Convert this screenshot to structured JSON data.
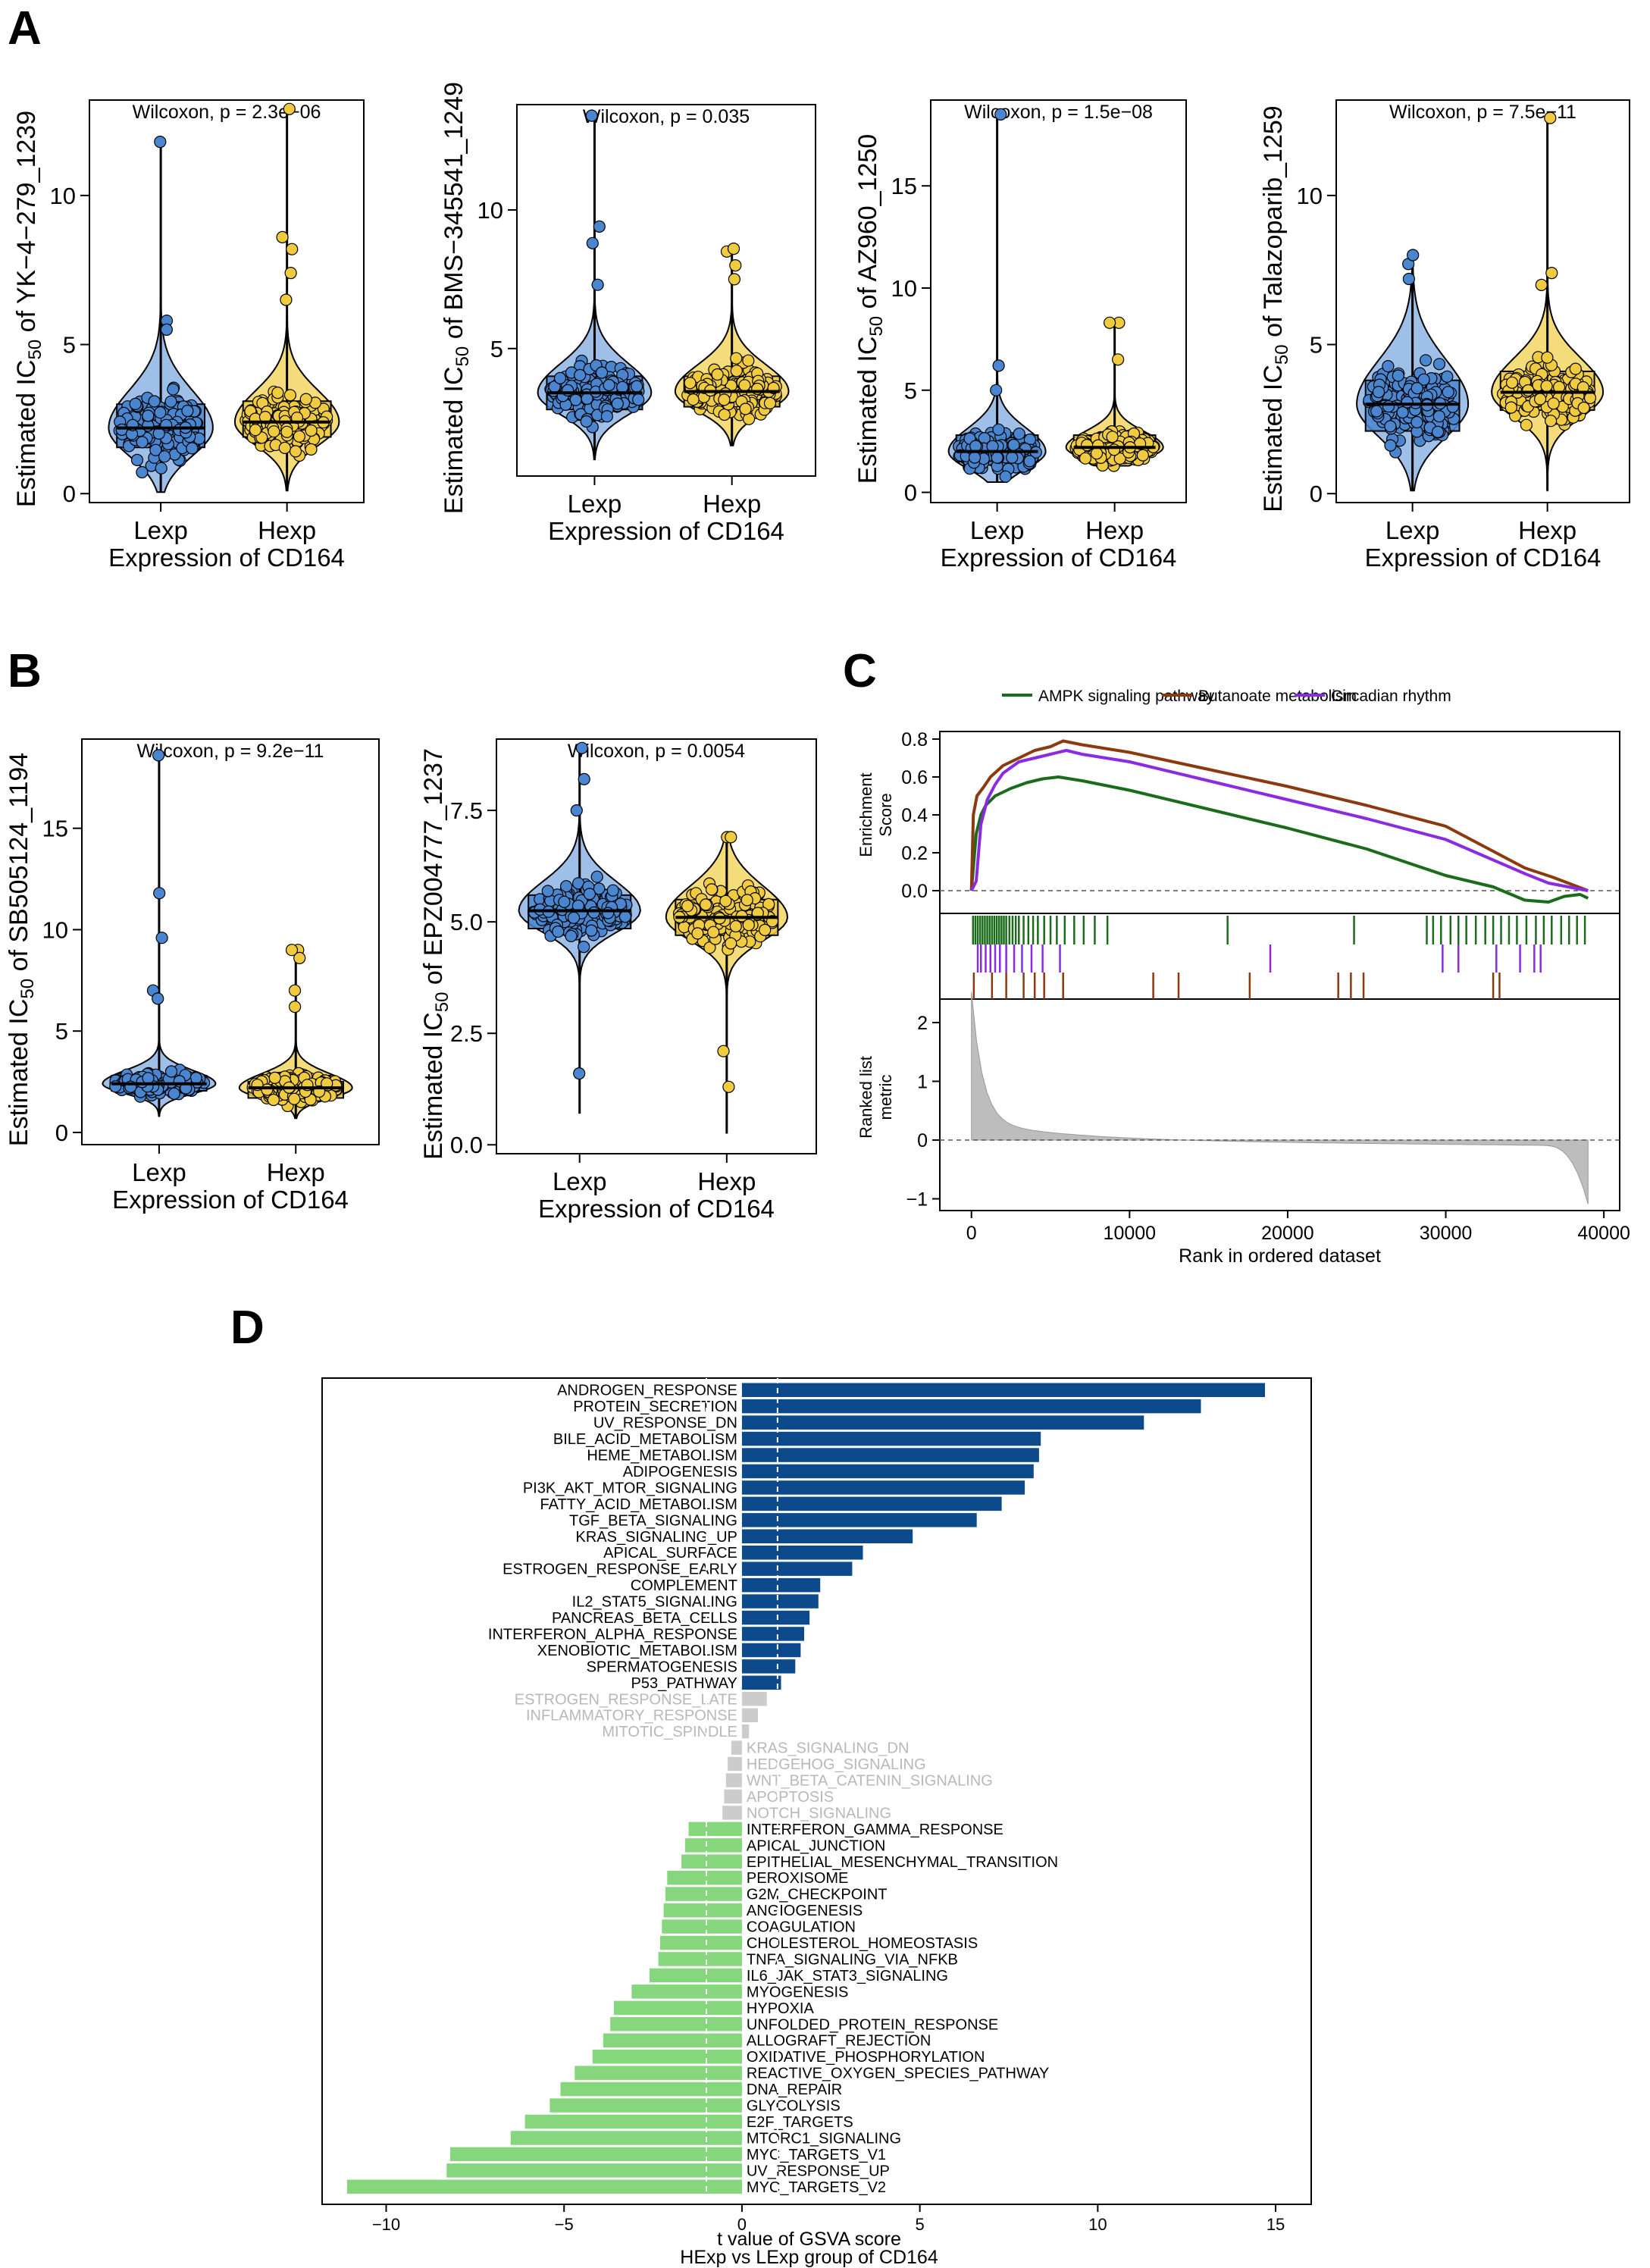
{
  "panel_labels": [
    "A",
    "B",
    "C",
    "D"
  ],
  "chart_data": [
    {
      "id": "A1",
      "type": "violin-box",
      "title": "Wilcoxon, p = 2.3e−06",
      "ylabel_prefix": "Estimated IC",
      "ylabel_sub": "50",
      "ylabel_suffix": " of YK−4−279_1239",
      "xlabel": "Expression of CD164",
      "categories": [
        "Lexp",
        "Hexp"
      ],
      "ylim": [
        -0.3,
        13.2
      ],
      "yticks": [
        0,
        5,
        10
      ],
      "ytick_labels": [
        "0",
        "5",
        "10"
      ],
      "groups": [
        {
          "name": "Lexp",
          "color": "#4a86d0",
          "fill": "#9ec0e8",
          "min": 0.05,
          "q1": 1.55,
          "median": 2.2,
          "q3": 3.0,
          "max": 11.8,
          "n_pts": 170,
          "outliers": [
            5.8,
            5.5
          ]
        },
        {
          "name": "Hexp",
          "color": "#f0cb40",
          "fill": "#f5dc7a",
          "min": 0.1,
          "q1": 1.9,
          "median": 2.4,
          "q3": 3.1,
          "max": 12.9,
          "n_pts": 170,
          "outliers": [
            8.6,
            8.2,
            7.4,
            6.5
          ]
        }
      ]
    },
    {
      "id": "A2",
      "type": "violin-box",
      "title": "Wilcoxon, p = 0.035",
      "ylabel_prefix": "Estimated IC",
      "ylabel_sub": "50",
      "ylabel_suffix": " of BMS−345541_1249",
      "xlabel": "Expression of CD164",
      "categories": [
        "Lexp",
        "Hexp"
      ],
      "ylim": [
        0.4,
        13.8
      ],
      "yticks": [
        5,
        10
      ],
      "ytick_labels": [
        "5",
        "10"
      ],
      "groups": [
        {
          "name": "Lexp",
          "color": "#4a86d0",
          "fill": "#9ec0e8",
          "min": 1.0,
          "q1": 2.8,
          "median": 3.4,
          "q3": 4.0,
          "max": 13.4,
          "n_pts": 170,
          "outliers": [
            9.4,
            8.8,
            7.3
          ]
        },
        {
          "name": "Hexp",
          "color": "#f0cb40",
          "fill": "#f5dc7a",
          "min": 1.5,
          "q1": 2.9,
          "median": 3.45,
          "q3": 4.0,
          "max": 8.6,
          "n_pts": 170,
          "outliers": [
            8.5,
            8.0,
            7.5
          ]
        }
      ]
    },
    {
      "id": "A3",
      "type": "violin-box",
      "title": "Wilcoxon, p = 1.5e−08",
      "ylabel_prefix": "Estimated IC",
      "ylabel_sub": "50",
      "ylabel_suffix": " of AZ960_1250",
      "xlabel": "Expression of CD164",
      "categories": [
        "Lexp",
        "Hexp"
      ],
      "ylim": [
        -0.5,
        19.2
      ],
      "yticks": [
        0,
        5,
        10,
        15
      ],
      "ytick_labels": [
        "0",
        "5",
        "10",
        "15"
      ],
      "groups": [
        {
          "name": "Lexp",
          "color": "#4a86d0",
          "fill": "#9ec0e8",
          "min": 0.5,
          "q1": 1.5,
          "median": 2.0,
          "q3": 2.8,
          "max": 18.5,
          "n_pts": 170,
          "outliers": [
            6.2,
            5.0
          ]
        },
        {
          "name": "Hexp",
          "color": "#f0cb40",
          "fill": "#f5dc7a",
          "min": 1.3,
          "q1": 1.9,
          "median": 2.2,
          "q3": 2.8,
          "max": 8.3,
          "n_pts": 170,
          "outliers": [
            8.3,
            6.5
          ]
        }
      ]
    },
    {
      "id": "A4",
      "type": "violin-box",
      "title": "Wilcoxon, p = 7.5e−11",
      "ylabel_prefix": "Estimated IC",
      "ylabel_sub": "50",
      "ylabel_suffix": " of Talazoparib_1259",
      "xlabel": "Expression of CD164",
      "categories": [
        "Lexp",
        "Hexp"
      ],
      "ylim": [
        -0.3,
        13.2
      ],
      "yticks": [
        0,
        5,
        10
      ],
      "ytick_labels": [
        "0",
        "5",
        "10"
      ],
      "groups": [
        {
          "name": "Lexp",
          "color": "#4a86d0",
          "fill": "#9ec0e8",
          "min": 0.1,
          "q1": 2.1,
          "median": 3.0,
          "q3": 3.8,
          "max": 8.0,
          "n_pts": 170,
          "outliers": [
            7.7,
            7.2
          ]
        },
        {
          "name": "Hexp",
          "color": "#f0cb40",
          "fill": "#f5dc7a",
          "min": 0.1,
          "q1": 2.8,
          "median": 3.4,
          "q3": 4.1,
          "max": 12.6,
          "n_pts": 170,
          "outliers": [
            7.4,
            7.0
          ]
        }
      ]
    },
    {
      "id": "B1",
      "type": "violin-box",
      "title": "Wilcoxon, p = 9.2e−11",
      "ylabel_prefix": "Estimated IC",
      "ylabel_sub": "50",
      "ylabel_suffix": " of SB505124_1194",
      "xlabel": "Expression of CD164",
      "categories": [
        "Lexp",
        "Hexp"
      ],
      "ylim": [
        -0.6,
        19.4
      ],
      "yticks": [
        0,
        5,
        10,
        15
      ],
      "ytick_labels": [
        "0",
        "5",
        "10",
        "15"
      ],
      "groups": [
        {
          "name": "Lexp",
          "color": "#4a86d0",
          "fill": "#9ec0e8",
          "min": 0.8,
          "q1": 2.05,
          "median": 2.4,
          "q3": 2.8,
          "max": 18.6,
          "n_pts": 170,
          "outliers": [
            11.8,
            9.6,
            7.0,
            6.6
          ]
        },
        {
          "name": "Hexp",
          "color": "#f0cb40",
          "fill": "#f5dc7a",
          "min": 0.7,
          "q1": 1.7,
          "median": 2.2,
          "q3": 2.5,
          "max": 9.0,
          "n_pts": 170,
          "outliers": [
            9.0,
            8.6,
            7.0,
            6.2
          ]
        }
      ]
    },
    {
      "id": "B2",
      "type": "violin-box",
      "title": "Wilcoxon, p = 0.0054",
      "ylabel_prefix": "Estimated IC",
      "ylabel_sub": "50",
      "ylabel_suffix": " of EPZ004777_1237",
      "xlabel": "Expression of CD164",
      "categories": [
        "Lexp",
        "Hexp"
      ],
      "ylim": [
        -0.2,
        9.1
      ],
      "yticks": [
        0,
        2.5,
        5,
        7.5
      ],
      "ytick_labels": [
        "0.0",
        "2.5",
        "5.0",
        "7.5"
      ],
      "groups": [
        {
          "name": "Lexp",
          "color": "#4a86d0",
          "fill": "#9ec0e8",
          "min": 0.7,
          "q1": 4.85,
          "median": 5.25,
          "q3": 5.6,
          "max": 8.9,
          "n_pts": 170,
          "outliers": [
            8.2,
            7.5,
            1.6
          ]
        },
        {
          "name": "Hexp",
          "color": "#f0cb40",
          "fill": "#f5dc7a",
          "min": 0.25,
          "q1": 4.7,
          "median": 5.1,
          "q3": 5.5,
          "max": 6.9,
          "n_pts": 170,
          "outliers": [
            6.9,
            1.3,
            2.1
          ]
        }
      ]
    },
    {
      "id": "C",
      "type": "line",
      "legend": [
        {
          "name": "AMPK signaling pathway",
          "color": "#1a6b1a"
        },
        {
          "name": "Butanoate metabolism",
          "color": "#8b3a0e"
        },
        {
          "name": "Circadian rhythm",
          "color": "#8a2be2"
        }
      ],
      "es_ylabel": [
        "Enrichment",
        "Score"
      ],
      "es_ylim": [
        -0.12,
        0.84
      ],
      "es_yticks": [
        0.0,
        0.2,
        0.4,
        0.6,
        0.8
      ],
      "es_ytick_labels": [
        "0.0",
        "0.2",
        "0.4",
        "0.6",
        "0.8"
      ],
      "xlim": [
        -2000,
        41000
      ],
      "series": [
        {
          "name": "AMPK signaling pathway",
          "color": "#1a6b1a",
          "x": [
            0,
            300,
            600,
            900,
            1500,
            2500,
            3500,
            4500,
            5500,
            7000,
            10000,
            15000,
            20000,
            25000,
            30000,
            33000,
            35000,
            36500,
            37500,
            38500,
            39000
          ],
          "y": [
            0.0,
            0.3,
            0.4,
            0.45,
            0.5,
            0.54,
            0.57,
            0.59,
            0.6,
            0.58,
            0.53,
            0.43,
            0.33,
            0.22,
            0.08,
            0.02,
            -0.05,
            -0.06,
            -0.03,
            -0.02,
            -0.04
          ]
        },
        {
          "name": "Butanoate metabolism",
          "color": "#8b3a0e",
          "x": [
            0,
            120,
            350,
            800,
            1200,
            2000,
            3000,
            4000,
            5000,
            5800,
            7000,
            10000,
            15000,
            20000,
            25000,
            30000,
            35000,
            36800,
            39000
          ],
          "y": [
            0.0,
            0.4,
            0.5,
            0.55,
            0.6,
            0.66,
            0.7,
            0.74,
            0.76,
            0.79,
            0.77,
            0.73,
            0.64,
            0.55,
            0.45,
            0.34,
            0.12,
            0.07,
            0.0
          ]
        },
        {
          "name": "Circadian rhythm",
          "color": "#8a2be2",
          "x": [
            0,
            300,
            600,
            1000,
            1500,
            2000,
            3000,
            4000,
            5000,
            6000,
            7000,
            10000,
            15000,
            20000,
            25000,
            30000,
            35000,
            36500,
            39000
          ],
          "y": [
            0.0,
            0.05,
            0.35,
            0.48,
            0.56,
            0.62,
            0.68,
            0.7,
            0.72,
            0.74,
            0.72,
            0.68,
            0.58,
            0.48,
            0.38,
            0.27,
            0.09,
            0.04,
            0.0
          ]
        }
      ],
      "hits": [
        {
          "series": "AMPK signaling pathway",
          "x": [
            100,
            250,
            400,
            550,
            700,
            850,
            1000,
            1150,
            1300,
            1450,
            1600,
            1750,
            1900,
            2050,
            2200,
            2400,
            2600,
            2800,
            3000,
            3300,
            3600,
            3900,
            4200,
            4600,
            5000,
            5400,
            5900,
            6500,
            7100,
            7800,
            8600,
            16200,
            24200,
            28800,
            29200,
            29700,
            30300,
            30800,
            31300,
            31900,
            32500,
            33000,
            33500,
            34000,
            34500,
            35100,
            35700,
            36200,
            36700,
            37300,
            37800,
            38300,
            38800
          ]
        },
        {
          "series": "Butanoate metabolism",
          "x": [
            150,
            1300,
            2200,
            3300,
            4000,
            4600,
            5800,
            11500,
            13100,
            17600,
            23200,
            24000,
            24800,
            33000,
            33400
          ]
        },
        {
          "series": "Circadian rhythm",
          "x": [
            400,
            600,
            900,
            1200,
            1500,
            1800,
            2200,
            2700,
            3200,
            3800,
            4500,
            5600,
            18900,
            29800,
            30800,
            33200,
            34700,
            35600,
            36000
          ]
        }
      ],
      "rl_ylabel": [
        "Ranked list",
        "metric"
      ],
      "rl_ylim": [
        -1.2,
        2.4
      ],
      "rl_yticks": [
        -1,
        0,
        1,
        2
      ],
      "rl_ytick_labels": [
        "−1",
        "0",
        "1",
        "2"
      ],
      "xticks": [
        0,
        10000,
        20000,
        30000,
        40000
      ],
      "xtick_labels": [
        "0",
        "10000",
        "20000",
        "30000",
        "40000"
      ],
      "xlabel": "Rank in ordered dataset"
    },
    {
      "id": "D",
      "type": "bar",
      "orientation": "horizontal",
      "xlabel": "t value of GSVA score",
      "xlabel2": "HExp vs LExp group of CD164",
      "xlim": [
        -11.8,
        16.0
      ],
      "xticks": [
        -10,
        -5,
        0,
        5,
        10,
        15
      ],
      "xtick_labels": [
        "−10",
        "−5",
        "0",
        "5",
        "10",
        "15"
      ],
      "threshold": 1.0,
      "colors": {
        "up": "#0d4a8c",
        "down": "#86d67e",
        "ns": "#cccccc",
        "ns_text": "#b8b8b8"
      },
      "categories": [
        "ANDROGEN_RESPONSE",
        "PROTEIN_SECRETION",
        "UV_RESPONSE_DN",
        "BILE_ACID_METABOLISM",
        "HEME_METABOLISM",
        "ADIPOGENESIS",
        "PI3K_AKT_MTOR_SIGNALING",
        "FATTY_ACID_METABOLISM",
        "TGF_BETA_SIGNALING",
        "KRAS_SIGNALING_UP",
        "APICAL_SURFACE",
        "ESTROGEN_RESPONSE_EARLY",
        "COMPLEMENT",
        "IL2_STAT5_SIGNALING",
        "PANCREAS_BETA_CELLS",
        "INTERFERON_ALPHA_RESPONSE",
        "XENOBIOTIC_METABOLISM",
        "SPERMATOGENESIS",
        "P53_PATHWAY",
        "ESTROGEN_RESPONSE_LATE",
        "INFLAMMATORY_RESPONSE",
        "MITOTIC_SPINDLE",
        "KRAS_SIGNALING_DN",
        "HEDGEHOG_SIGNALING",
        "WNT_BETA_CATENIN_SIGNALING",
        "APOPTOSIS",
        "NOTCH_SIGNALING",
        "INTERFERON_GAMMA_RESPONSE",
        "APICAL_JUNCTION",
        "EPITHELIAL_MESENCHYMAL_TRANSITION",
        "PEROXISOME",
        "G2M_CHECKPOINT",
        "ANGIOGENESIS",
        "COAGULATION",
        "CHOLESTEROL_HOMEOSTASIS",
        "TNFA_SIGNALING_VIA_NFKB",
        "IL6_JAK_STAT3_SIGNALING",
        "MYOGENESIS",
        "HYPOXIA",
        "UNFOLDED_PROTEIN_RESPONSE",
        "ALLOGRAFT_REJECTION",
        "OXIDATIVE_PHOSPHORYLATION",
        "REACTIVE_OXYGEN_SPECIES_PATHWAY",
        "DNA_REPAIR",
        "GLYCOLYSIS",
        "E2F_TARGETS",
        "MTORC1_SIGNALING",
        "MYC_TARGETS_V1",
        "UV_RESPONSE_UP",
        "MYC_TARGETS_V2"
      ],
      "values": [
        14.7,
        12.9,
        11.3,
        8.4,
        8.35,
        8.2,
        7.95,
        7.3,
        6.6,
        4.8,
        3.4,
        3.1,
        2.2,
        2.15,
        1.9,
        1.75,
        1.65,
        1.5,
        1.1,
        0.7,
        0.45,
        0.2,
        -0.3,
        -0.4,
        -0.45,
        -0.5,
        -0.55,
        -1.5,
        -1.6,
        -1.7,
        -2.1,
        -2.15,
        -2.2,
        -2.25,
        -2.3,
        -2.35,
        -2.6,
        -3.1,
        -3.6,
        -3.7,
        -3.9,
        -4.2,
        -4.7,
        -5.1,
        -5.4,
        -6.1,
        -6.5,
        -8.2,
        -8.3,
        -11.1
      ]
    }
  ]
}
